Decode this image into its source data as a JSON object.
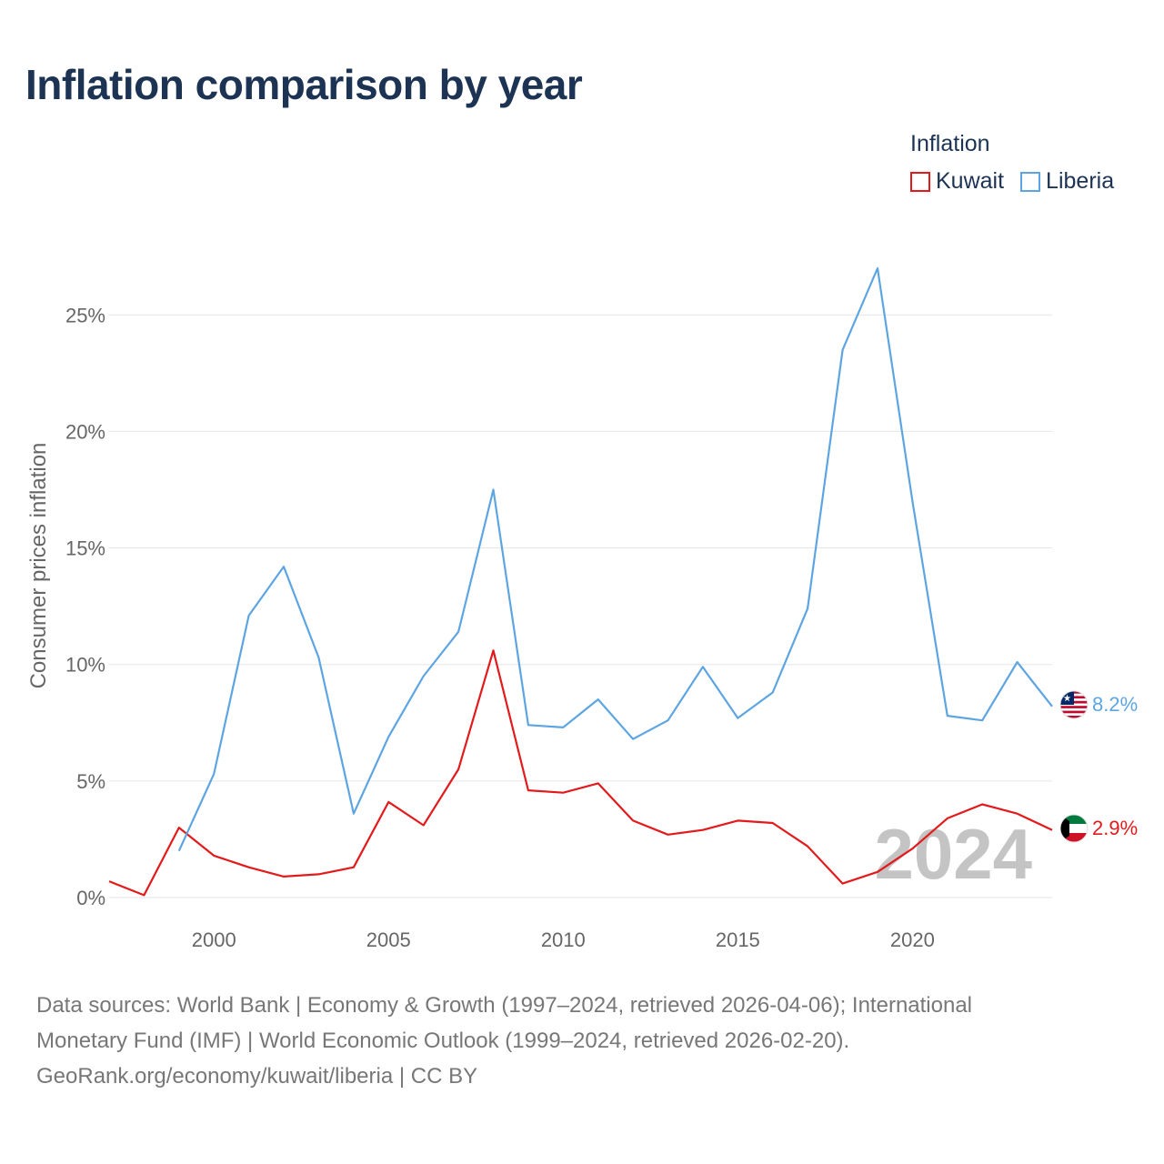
{
  "title": "Inflation comparison by year",
  "legend": {
    "title": "Inflation",
    "items": [
      {
        "label": "Kuwait",
        "color": "#e31a1c"
      },
      {
        "label": "Liberia",
        "color": "#5da5e2"
      }
    ]
  },
  "source": {
    "line1": "Data sources: World Bank | Economy & Growth (1997–2024, retrieved 2026-04-06); International",
    "line2": "Monetary Fund (IMF) | World Economic Outlook (1999–2024, retrieved 2026-02-20).",
    "line3": "GeoRank.org/economy/kuwait/liberia | CC BY"
  },
  "chart_data": {
    "type": "line",
    "title": "Inflation comparison by year",
    "xlabel": "",
    "ylabel": "Consumer prices inflation",
    "xlim": [
      1997,
      2024
    ],
    "ylim": [
      0,
      27
    ],
    "x_ticks": [
      2000,
      2005,
      2010,
      2015,
      2020
    ],
    "y_ticks": [
      0,
      5,
      10,
      15,
      20,
      25
    ],
    "y_tick_labels": [
      "0%",
      "5%",
      "10%",
      "15%",
      "20%",
      "25%"
    ],
    "grid": true,
    "watermark_year": "2024",
    "series": [
      {
        "name": "Kuwait",
        "color": "#e31a1c",
        "end_label": "2.9%",
        "flag": "kuwait-flag-icon",
        "x": [
          1997,
          1998,
          1999,
          2000,
          2001,
          2002,
          2003,
          2004,
          2005,
          2006,
          2007,
          2008,
          2009,
          2010,
          2011,
          2012,
          2013,
          2014,
          2015,
          2016,
          2017,
          2018,
          2019,
          2020,
          2021,
          2022,
          2023,
          2024
        ],
        "values": [
          0.7,
          0.1,
          3.0,
          1.8,
          1.3,
          0.9,
          1.0,
          1.3,
          4.1,
          3.1,
          5.5,
          10.6,
          4.6,
          4.5,
          4.9,
          3.3,
          2.7,
          2.9,
          3.3,
          3.2,
          2.2,
          0.6,
          1.1,
          2.1,
          3.4,
          4.0,
          3.6,
          2.9
        ]
      },
      {
        "name": "Liberia",
        "color": "#5da5e2",
        "end_label": "8.2%",
        "flag": "liberia-flag-icon",
        "x": [
          1999,
          2000,
          2001,
          2002,
          2003,
          2004,
          2005,
          2006,
          2007,
          2008,
          2009,
          2010,
          2011,
          2012,
          2013,
          2014,
          2015,
          2016,
          2017,
          2018,
          2019,
          2020,
          2021,
          2022,
          2023,
          2024
        ],
        "values": [
          2.0,
          5.3,
          12.1,
          14.2,
          10.3,
          3.6,
          6.9,
          9.5,
          11.4,
          17.5,
          7.4,
          7.3,
          8.5,
          6.8,
          7.6,
          9.9,
          7.7,
          8.8,
          12.4,
          23.5,
          27.0,
          17.0,
          7.8,
          7.6,
          10.1,
          8.2
        ]
      }
    ]
  }
}
